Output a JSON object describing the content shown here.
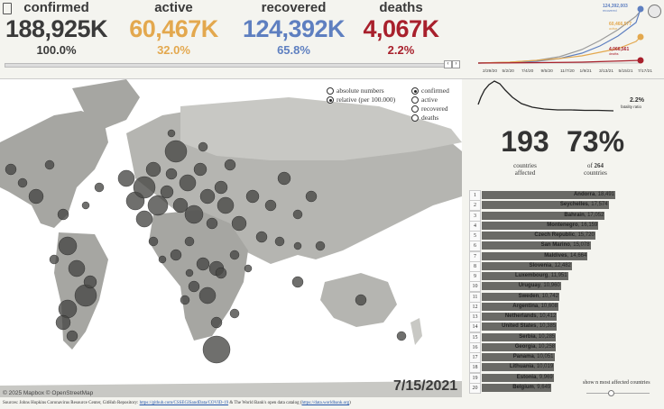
{
  "stats": {
    "confirmed": {
      "label": "confirmed",
      "value": "188,925K",
      "pct": "100.0%",
      "color": "#3a3a3a"
    },
    "active": {
      "label": "active",
      "value": "60,467K",
      "pct": "32.0%",
      "color": "#e3a84e"
    },
    "recovered": {
      "label": "recovered",
      "value": "124,392K",
      "pct": "65.8%",
      "color": "#5e7fc0"
    },
    "deaths": {
      "label": "deaths",
      "value": "4,067K",
      "pct": "2.2%",
      "color": "#a8202c"
    }
  },
  "timeline": {
    "x_ticks": [
      "2/29/20",
      "5/2/20",
      "7/4/20",
      "9/5/20",
      "11/7/20",
      "1/9/21",
      "3/13/21",
      "5/15/21",
      "7/17/21"
    ],
    "recovered_label": "124,392,003",
    "recovered_sub": "recovered",
    "active_label": "60,466,577",
    "active_sub": "active",
    "deaths_label": "4,066,561",
    "deaths_sub": "deaths"
  },
  "fatality": {
    "value": "2.2%",
    "label": "fatality ratio"
  },
  "countries": {
    "affected_count": "193",
    "affected_label_1": "countries",
    "affected_label_2": "affected",
    "pct": "73%",
    "of_label": "of",
    "total": "264",
    "total_label": "countries"
  },
  "view_options": {
    "mode": [
      "absolute numbers",
      "relative (per 100.000)"
    ],
    "mode_selected": 1,
    "metric": [
      "confirmed",
      "active",
      "recovered",
      "deaths"
    ],
    "metric_selected": 0
  },
  "map": {
    "date": "7/15/2021",
    "attribution": "© 2025 Mapbox  © OpenStreetMap"
  },
  "ranking": [
    {
      "rank": "1",
      "name": "Andorra",
      "value": "18,491",
      "frac": 1.0
    },
    {
      "rank": "2",
      "name": "Seychelles",
      "value": "17,574",
      "frac": 0.95
    },
    {
      "rank": "3",
      "name": "Bahrain",
      "value": "17,052",
      "frac": 0.922
    },
    {
      "rank": "4",
      "name": "Montenegro",
      "value": "16,159",
      "frac": 0.874
    },
    {
      "rank": "5",
      "name": "Czech Republic",
      "value": "15,720",
      "frac": 0.85
    },
    {
      "rank": "6",
      "name": "San Marino",
      "value": "15,078",
      "frac": 0.815
    },
    {
      "rank": "7",
      "name": "Maldives",
      "value": "14,664",
      "frac": 0.793
    },
    {
      "rank": "8",
      "name": "Slovenia",
      "value": "12,482",
      "frac": 0.675
    },
    {
      "rank": "9",
      "name": "Luxembourg",
      "value": "11,951",
      "frac": 0.646
    },
    {
      "rank": "10",
      "name": "Uruguay",
      "value": "10,960",
      "frac": 0.593
    },
    {
      "rank": "11",
      "name": "Sweden",
      "value": "10,742",
      "frac": 0.581
    },
    {
      "rank": "12",
      "name": "Argentina",
      "value": "10,608",
      "frac": 0.574
    },
    {
      "rank": "13",
      "name": "Netherlands",
      "value": "10,412",
      "frac": 0.563
    },
    {
      "rank": "14",
      "name": "United States",
      "value": "10,385",
      "frac": 0.562
    },
    {
      "rank": "15",
      "name": "Serbia",
      "value": "10,285",
      "frac": 0.556
    },
    {
      "rank": "16",
      "name": "Georgia",
      "value": "10,258",
      "frac": 0.555
    },
    {
      "rank": "17",
      "name": "Panama",
      "value": "10,051",
      "frac": 0.544
    },
    {
      "rank": "18",
      "name": "Lithuania",
      "value": "10,019",
      "frac": 0.542
    },
    {
      "rank": "19",
      "name": "Estonia",
      "value": "9,969",
      "frac": 0.539
    },
    {
      "rank": "20",
      "name": "Belgium",
      "value": "9,649",
      "frac": 0.522
    }
  ],
  "show_more_label": "show n most affected countries",
  "sources": {
    "prefix": "Sources: Johns Hopkins Coronavirus Resource Center, GitHub Repository: ",
    "link1": "https://github.com/CSSEGISandData/COVID-19",
    "mid": " & The World Bank's open data catalog (",
    "link2": "https://data.worldbank.org",
    "suffix": ")"
  }
}
